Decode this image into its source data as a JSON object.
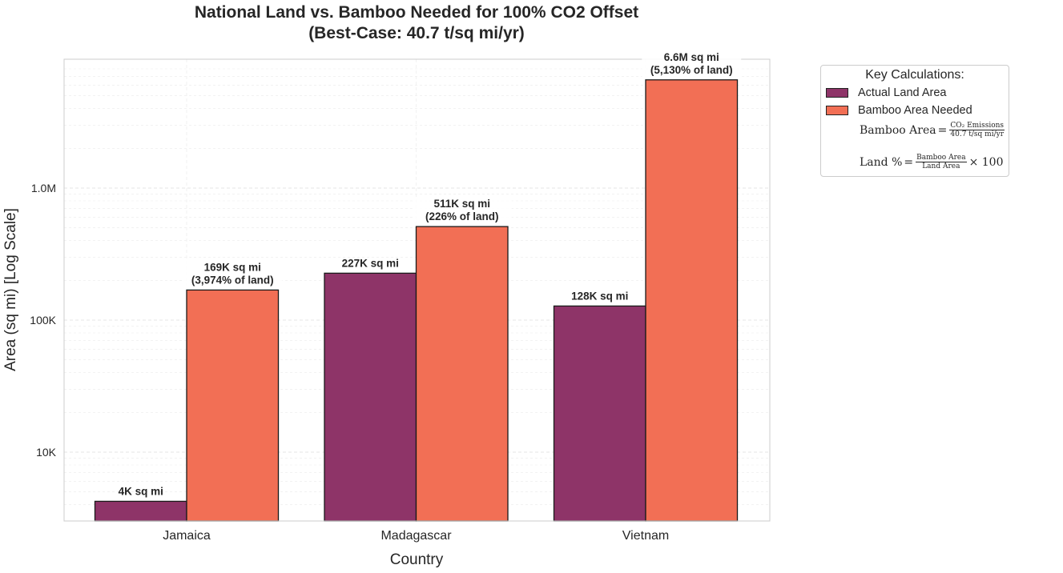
{
  "chart_data": {
    "type": "bar",
    "title": "National Land vs. Bamboo Needed for 100% CO2 Offset\n(Best-Case: 40.7 t/sq mi/yr)",
    "xlabel": "Country",
    "ylabel": "Area (sq mi) [Log Scale]",
    "yscale": "log",
    "ylim": [
      3000,
      9000000
    ],
    "yticks": [
      10000,
      100000,
      1000000
    ],
    "ytick_labels": [
      "10K",
      "100K",
      "1.0M"
    ],
    "grid": true,
    "legend_position": "outside-right",
    "categories": [
      "Jamaica",
      "Madagascar",
      "Vietnam"
    ],
    "series": [
      {
        "name": "Actual Land Area",
        "color": "#8e3468",
        "values": [
          4244,
          226658,
          127881
        ],
        "labels": [
          "4K sq mi",
          "227K sq mi",
          "128K sq mi"
        ]
      },
      {
        "name": "Bamboo Area Needed",
        "color": "#f26f55",
        "values": [
          169000,
          511000,
          6600000
        ],
        "labels": [
          "169K sq mi\n(3,974% of land)",
          "511K sq mi\n(226% of land)",
          "6.6M sq mi\n(5,130% of land)"
        ]
      }
    ],
    "legend": {
      "title": "Key Calculations:",
      "formula1": {
        "lhs": "Bamboo Area",
        "eq": "=",
        "num": "CO₂ Emissions",
        "den": "40.7 t/sq mi/yr"
      },
      "formula2": {
        "lhs": "Land %",
        "eq": "=",
        "num": "Bamboo Area",
        "den": "Land Area",
        "tail": "× 100"
      }
    }
  }
}
